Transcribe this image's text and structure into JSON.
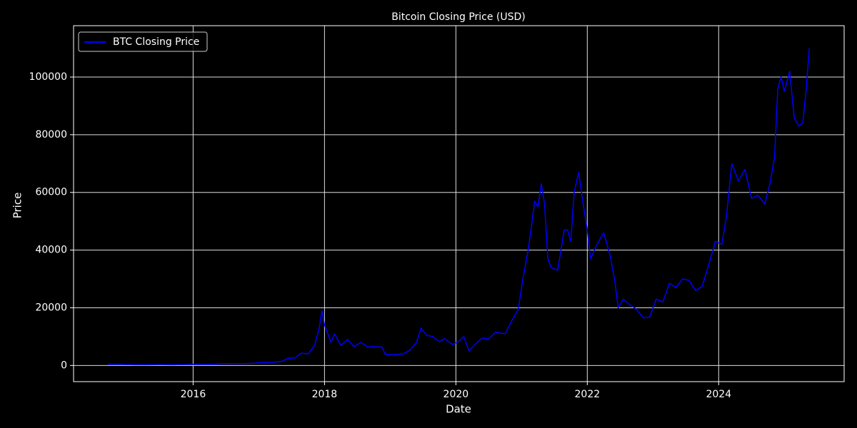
{
  "chart_data": {
    "type": "line",
    "title": "Bitcoin Closing Price (USD)",
    "x_label": "Date",
    "y_label": "Price",
    "legend": "upper left",
    "grid": true,
    "xlim": [
      2014.18,
      2025.91
    ],
    "xticks": [
      2016,
      2018,
      2020,
      2022,
      2024
    ],
    "ylim": [
      -5600,
      117800
    ],
    "yticks": [
      0,
      20000,
      40000,
      60000,
      80000,
      100000
    ],
    "x": [
      2014.7,
      2014.9,
      2015.0,
      2015.1,
      2015.3,
      2015.5,
      2015.7,
      2015.85,
      2016.0,
      2016.3,
      2016.5,
      2016.7,
      2016.9,
      2017.0,
      2017.2,
      2017.35,
      2017.45,
      2017.55,
      2017.65,
      2017.75,
      2017.85,
      2017.92,
      2017.96,
      2018.0,
      2018.05,
      2018.1,
      2018.15,
      2018.25,
      2018.35,
      2018.45,
      2018.55,
      2018.65,
      2018.8,
      2018.88,
      2018.92,
      2019.0,
      2019.2,
      2019.3,
      2019.4,
      2019.47,
      2019.55,
      2019.65,
      2019.75,
      2019.83,
      2019.95,
      2020.05,
      2020.12,
      2020.2,
      2020.3,
      2020.4,
      2020.5,
      2020.6,
      2020.75,
      2020.85,
      2020.95,
      2021.02,
      2021.1,
      2021.15,
      2021.2,
      2021.25,
      2021.3,
      2021.35,
      2021.4,
      2021.45,
      2021.55,
      2021.6,
      2021.65,
      2021.7,
      2021.75,
      2021.8,
      2021.87,
      2021.93,
      2022.0,
      2022.05,
      2022.15,
      2022.25,
      2022.35,
      2022.42,
      2022.47,
      2022.55,
      2022.65,
      2022.75,
      2022.85,
      2022.95,
      2023.05,
      2023.15,
      2023.25,
      2023.35,
      2023.45,
      2023.55,
      2023.65,
      2023.75,
      2023.85,
      2023.95,
      2024.05,
      2024.12,
      2024.2,
      2024.3,
      2024.4,
      2024.5,
      2024.6,
      2024.7,
      2024.78,
      2024.85,
      2024.9,
      2024.95,
      2025.0,
      2025.08,
      2025.15,
      2025.22,
      2025.28,
      2025.33,
      2025.38
    ],
    "series": [
      {
        "name": "BTC Closing Price",
        "color": "#0000ff",
        "values": [
          460,
          380,
          320,
          230,
          240,
          260,
          230,
          320,
          430,
          420,
          650,
          610,
          740,
          960,
          1100,
          1400,
          2500,
          2600,
          4300,
          4000,
          7000,
          13000,
          19000,
          14000,
          11000,
          8000,
          11000,
          7000,
          9000,
          6500,
          8000,
          6500,
          6500,
          6300,
          4000,
          3700,
          4000,
          5300,
          8000,
          13000,
          10500,
          10000,
          8200,
          9300,
          7200,
          8500,
          10000,
          5000,
          7500,
          9500,
          9200,
          11500,
          11000,
          15500,
          19500,
          30000,
          40000,
          48000,
          57000,
          55000,
          63000,
          56000,
          37000,
          34000,
          33000,
          40000,
          47000,
          47000,
          43000,
          60000,
          67000,
          57000,
          47000,
          37000,
          42000,
          46000,
          38000,
          29000,
          20000,
          23000,
          21000,
          19500,
          16500,
          16800,
          23000,
          22000,
          28500,
          27000,
          30000,
          29500,
          26000,
          27500,
          35000,
          43000,
          42000,
          52000,
          70000,
          64000,
          68000,
          58000,
          59000,
          56000,
          63000,
          72000,
          96000,
          100000,
          95000,
          102000,
          86000,
          83000,
          84000,
          95000,
          110000
        ]
      }
    ]
  }
}
